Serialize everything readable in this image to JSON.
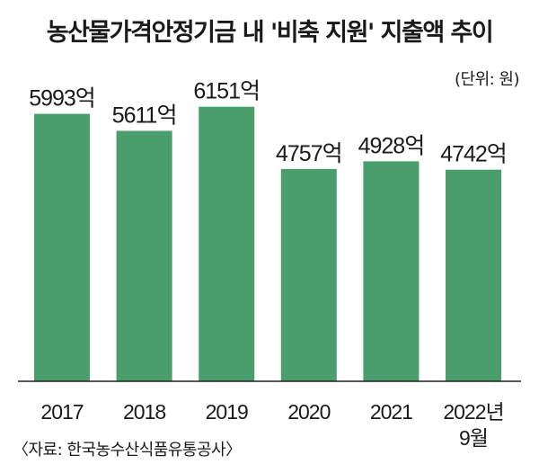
{
  "chart_data": {
    "type": "bar",
    "title": "농산물가격안정기금 내 '비축 지원' 지출액 추이",
    "unit_label": "(단위: 원)",
    "categories": [
      "2017",
      "2018",
      "2019",
      "2020",
      "2021",
      "2022년 9월"
    ],
    "values": [
      5993,
      5611,
      6151,
      4757,
      4928,
      4742
    ],
    "value_labels": [
      "5993억",
      "5611억",
      "6151억",
      "4757억",
      "4928억",
      "4742억"
    ],
    "bar_color": "#4a9e6b",
    "grid": false,
    "source": "〈자료: 한국농수산식품유통공사〉"
  }
}
